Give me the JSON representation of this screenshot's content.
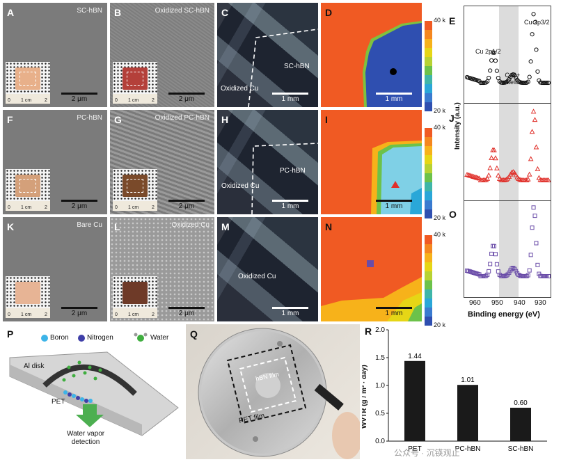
{
  "panels": {
    "A": {
      "letter": "A",
      "title": "SC-hBN",
      "scale": "2 μm"
    },
    "B": {
      "letter": "B",
      "title": "Oxidized SC-hBN",
      "scale": "2 μm"
    },
    "C": {
      "letter": "C",
      "label_left": "Oxidized Cu",
      "label_right": "SC-hBN",
      "scale": "1 mm"
    },
    "D": {
      "letter": "D",
      "scale": "1 mm"
    },
    "E": {
      "letter": "E"
    },
    "F": {
      "letter": "F",
      "title": "PC-hBN",
      "scale": "2 μm"
    },
    "G": {
      "letter": "G",
      "title": "Oxidized PC-hBN",
      "scale": "2 μm"
    },
    "H": {
      "letter": "H",
      "label_left": "Oxidized Cu",
      "label_right": "PC-hBN",
      "scale": "1 mm"
    },
    "I": {
      "letter": "I",
      "scale": "1 mm"
    },
    "J": {
      "letter": "J"
    },
    "K": {
      "letter": "K",
      "title": "Bare Cu",
      "scale": "2 μm"
    },
    "L": {
      "letter": "L",
      "title": "Oxidized Cu",
      "scale": "2 μm"
    },
    "M": {
      "letter": "M",
      "label_center": "Oxidized Cu",
      "scale": "1 mm"
    },
    "N": {
      "letter": "N",
      "scale": "1 mm"
    },
    "O": {
      "letter": "O"
    },
    "P": {
      "letter": "P"
    },
    "Q": {
      "letter": "Q"
    },
    "R": {
      "letter": "R"
    }
  },
  "ruler": {
    "t0": "0",
    "t1": "1 cm",
    "t2": "2"
  },
  "colorbar": {
    "top": "40 k",
    "bottom": "20 k",
    "colors": [
      "#f05a23",
      "#f5871f",
      "#f7b21a",
      "#e6d616",
      "#b7d233",
      "#6cc24a",
      "#3fb6a8",
      "#2aa7d8",
      "#3a7bd0",
      "#2f4fb0"
    ]
  },
  "xps": {
    "peak_labels": {
      "cu2p12": "Cu 2p1/2",
      "cu2p32": "Cu 2p3/2",
      "satellite_line1": "Cu2+",
      "satellite_line2": "satellite"
    },
    "ylabel": "Intensity (a.u.)",
    "xlabel": "Binding energy (eV)",
    "xticks": [
      "960",
      "950",
      "940",
      "930"
    ],
    "colors": {
      "E": "#111111",
      "J": "#e0302a",
      "O": "#6a4ca8"
    }
  },
  "schematic": {
    "legend": {
      "boron": "Boron",
      "nitrogen": "Nitrogen",
      "water": "Water"
    },
    "al_disk": "Al disk",
    "pet": "PET",
    "detection_line1": "Water vapor",
    "detection_line2": "detection",
    "colors": {
      "boron": "#3db4e8",
      "nitrogen": "#3f3fa8",
      "water": "#3fae3f"
    }
  },
  "photo_q": {
    "hbn_film": "hBN film",
    "pet_film": "PET film"
  },
  "watermark": "公众号 · 沉锳观止",
  "chart_data": {
    "type": "bar",
    "categories": [
      "PET",
      "PC-hBN",
      "SC-hBN"
    ],
    "values": [
      1.44,
      1.01,
      0.6
    ],
    "value_labels": [
      "1.44",
      "1.01",
      "0.60"
    ],
    "ylabel": "WVTR (g / m² · day)",
    "ylim": [
      0,
      2.0
    ],
    "yticks": [
      "0.0",
      "0.5",
      "1.0",
      "1.5",
      "2.0"
    ],
    "color": "#1a1a1a"
  }
}
